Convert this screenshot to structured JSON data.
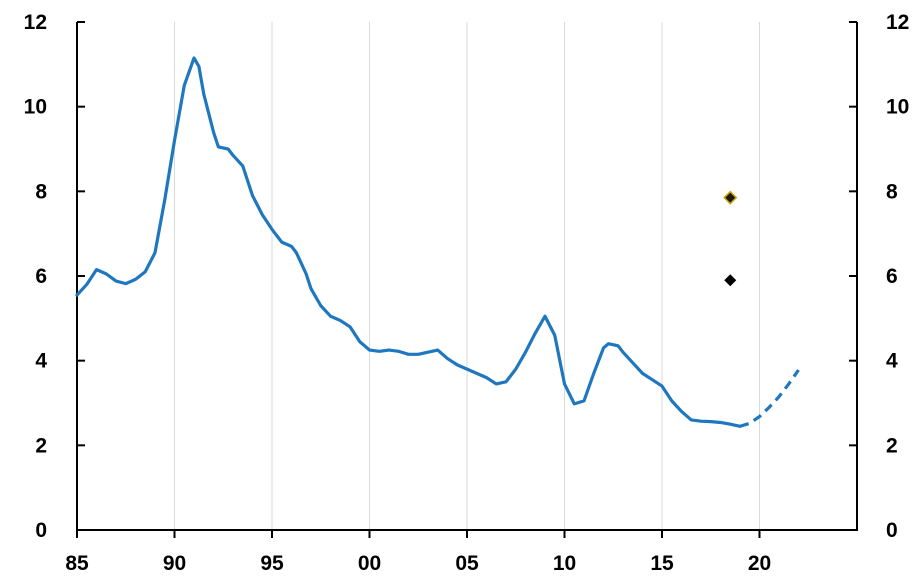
{
  "chart_data": {
    "type": "line",
    "title": "",
    "xlabel": "",
    "ylabel": "",
    "xlim": [
      1985,
      2025
    ],
    "ylim": [
      0,
      12
    ],
    "grid": "vertical",
    "x_ticks": [
      1985,
      1990,
      1995,
      2000,
      2005,
      2010,
      2015,
      2020
    ],
    "x_tick_labels": [
      "85",
      "90",
      "95",
      "00",
      "05",
      "10",
      "15",
      "20"
    ],
    "y_ticks": [
      0,
      2,
      4,
      6,
      8,
      10,
      12
    ],
    "y_tick_labels": [
      "0",
      "2",
      "4",
      "6",
      "8",
      "10",
      "12"
    ],
    "y_tick_labels_right": [
      "0",
      "2",
      "4",
      "6",
      "8",
      "10",
      "12"
    ],
    "series": [
      {
        "style": "solid",
        "color": "#1f77c0",
        "points": [
          [
            1985.0,
            5.55
          ],
          [
            1985.5,
            5.8
          ],
          [
            1986.0,
            6.15
          ],
          [
            1986.5,
            6.05
          ],
          [
            1987.0,
            5.88
          ],
          [
            1987.5,
            5.82
          ],
          [
            1988.0,
            5.92
          ],
          [
            1988.5,
            6.1
          ],
          [
            1989.0,
            6.55
          ],
          [
            1989.5,
            7.8
          ],
          [
            1990.0,
            9.2
          ],
          [
            1990.5,
            10.5
          ],
          [
            1991.0,
            11.15
          ],
          [
            1991.25,
            10.95
          ],
          [
            1991.5,
            10.3
          ],
          [
            1992.0,
            9.4
          ],
          [
            1992.25,
            9.05
          ],
          [
            1992.75,
            9.0
          ],
          [
            1993.0,
            8.85
          ],
          [
            1993.5,
            8.6
          ],
          [
            1994.0,
            7.9
          ],
          [
            1994.5,
            7.45
          ],
          [
            1995.0,
            7.1
          ],
          [
            1995.5,
            6.8
          ],
          [
            1996.0,
            6.7
          ],
          [
            1996.25,
            6.55
          ],
          [
            1996.75,
            6.05
          ],
          [
            1997.0,
            5.7
          ],
          [
            1997.5,
            5.3
          ],
          [
            1998.0,
            5.05
          ],
          [
            1998.5,
            4.95
          ],
          [
            1999.0,
            4.8
          ],
          [
            1999.5,
            4.45
          ],
          [
            2000.0,
            4.25
          ],
          [
            2000.5,
            4.22
          ],
          [
            2001.0,
            4.25
          ],
          [
            2001.5,
            4.22
          ],
          [
            2002.0,
            4.15
          ],
          [
            2002.5,
            4.15
          ],
          [
            2003.0,
            4.2
          ],
          [
            2003.5,
            4.25
          ],
          [
            2004.0,
            4.05
          ],
          [
            2004.5,
            3.9
          ],
          [
            2005.0,
            3.8
          ],
          [
            2005.5,
            3.7
          ],
          [
            2006.0,
            3.6
          ],
          [
            2006.5,
            3.45
          ],
          [
            2007.0,
            3.5
          ],
          [
            2007.5,
            3.8
          ],
          [
            2008.0,
            4.2
          ],
          [
            2008.5,
            4.65
          ],
          [
            2009.0,
            5.05
          ],
          [
            2009.5,
            4.6
          ],
          [
            2010.0,
            3.45
          ],
          [
            2010.5,
            2.98
          ],
          [
            2011.0,
            3.05
          ],
          [
            2011.5,
            3.7
          ],
          [
            2012.0,
            4.3
          ],
          [
            2012.25,
            4.4
          ],
          [
            2012.75,
            4.35
          ],
          [
            2013.0,
            4.2
          ],
          [
            2013.5,
            3.95
          ],
          [
            2014.0,
            3.7
          ],
          [
            2014.5,
            3.55
          ],
          [
            2015.0,
            3.4
          ],
          [
            2015.5,
            3.05
          ],
          [
            2016.0,
            2.8
          ],
          [
            2016.5,
            2.6
          ],
          [
            2017.0,
            2.57
          ],
          [
            2017.5,
            2.56
          ],
          [
            2018.0,
            2.54
          ],
          [
            2018.5,
            2.5
          ],
          [
            2019.0,
            2.45
          ]
        ]
      },
      {
        "style": "dashed",
        "color": "#1f77c0",
        "points": [
          [
            2019.0,
            2.45
          ],
          [
            2019.5,
            2.52
          ],
          [
            2020.0,
            2.68
          ],
          [
            2020.5,
            2.9
          ],
          [
            2021.0,
            3.15
          ],
          [
            2021.5,
            3.45
          ],
          [
            2022.0,
            3.78
          ]
        ]
      }
    ],
    "markers": [
      {
        "x": 2018.5,
        "y": 7.85,
        "shape": "diamond",
        "color": "#1a1a1a",
        "outline": "#c8a400"
      },
      {
        "x": 2018.5,
        "y": 5.9,
        "shape": "diamond",
        "color": "#000000"
      }
    ]
  }
}
